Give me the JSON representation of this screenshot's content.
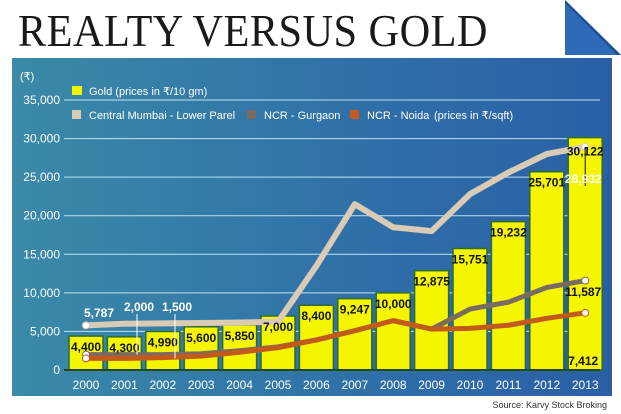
{
  "title": "REALTY VERSUS GOLD",
  "source": "Source: Karvy Stock Broking",
  "chart_data": {
    "type": "bar+line",
    "ylabel": "(₹)",
    "ylim": [
      0,
      35000
    ],
    "yticks": [
      "0",
      "5,000",
      "10,000",
      "15,000",
      "20,000",
      "25,000",
      "30,000",
      "35,000"
    ],
    "ytick_values": [
      0,
      5000,
      10000,
      15000,
      20000,
      25000,
      30000,
      35000
    ],
    "grid": true,
    "legend_position": "top-left",
    "categories": [
      "2000",
      "2001",
      "2002",
      "2003",
      "2004",
      "2005",
      "2006",
      "2007",
      "2008",
      "2009",
      "2010",
      "2011",
      "2012",
      "2013"
    ],
    "bars": {
      "name": "Gold (prices in ₹/10 gm)",
      "color": "#f5f500",
      "values": [
        4400,
        4300,
        4990,
        5600,
        5850,
        7000,
        8400,
        9247,
        10000,
        12875,
        15751,
        19232,
        25701,
        30122
      ],
      "labels": [
        "4,400",
        "4,300",
        "4,990",
        "5,600",
        "5,850",
        "7,000",
        "8,400",
        "9,247",
        "10,000",
        "12,875",
        "15,751",
        "19,232",
        "25,701",
        "30,122"
      ]
    },
    "series": [
      {
        "name": "Central Mumbai - Lower Parel",
        "color": "#d9cbb4",
        "values": [
          5787,
          6000,
          6050,
          6100,
          6150,
          6250,
          13500,
          21500,
          18500,
          18000,
          22800,
          25600,
          28000,
          28932
        ]
      },
      {
        "name": "NCR - Gurgaon",
        "color": "#7a6a60",
        "values": [
          2000,
          2000,
          2000,
          2100,
          2500,
          3000,
          3900,
          5100,
          6400,
          5300,
          7900,
          8800,
          10700,
          11587
        ]
      },
      {
        "name": "NCR - Noida",
        "color": "#c25a1a",
        "values": [
          1500,
          1500,
          1600,
          1800,
          2300,
          2900,
          3900,
          5100,
          6400,
          5300,
          5400,
          5800,
          6700,
          7412
        ]
      }
    ],
    "legend_note": "(prices in ₹/sqft)",
    "annotations": [
      {
        "text": "5,787",
        "series": 0,
        "index": 0
      },
      {
        "text": "2,000",
        "series": 1,
        "index": 0
      },
      {
        "text": "1,500",
        "series": 2,
        "index": 0
      },
      {
        "text": "28,932",
        "series": 0,
        "index": 13
      },
      {
        "text": "11,587",
        "series": 1,
        "index": 13
      },
      {
        "text": "7,412",
        "series": 2,
        "index": 13
      }
    ]
  }
}
